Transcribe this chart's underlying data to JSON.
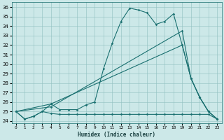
{
  "bg_color": "#cce8e8",
  "line_color": "#1a7070",
  "xlabel": "Humidex (Indice chaleur)",
  "xlim": [
    -0.5,
    23.5
  ],
  "ylim": [
    23.8,
    36.5
  ],
  "yticks": [
    24,
    25,
    26,
    27,
    28,
    29,
    30,
    31,
    32,
    33,
    34,
    35,
    36
  ],
  "xticks": [
    0,
    1,
    2,
    3,
    4,
    5,
    6,
    7,
    8,
    9,
    10,
    11,
    12,
    13,
    14,
    15,
    16,
    17,
    18,
    19,
    20,
    21,
    22,
    23
  ],
  "flat_x": [
    0,
    1,
    2,
    3,
    4,
    5,
    6,
    7,
    8,
    9,
    10,
    11,
    12,
    13,
    14,
    15,
    16,
    17,
    18,
    19,
    20,
    21,
    22,
    23
  ],
  "flat_y": [
    25.0,
    24.2,
    24.5,
    25.0,
    24.8,
    24.7,
    24.7,
    24.7,
    24.7,
    24.7,
    24.7,
    24.7,
    24.7,
    24.7,
    24.7,
    24.7,
    24.7,
    24.7,
    24.7,
    24.7,
    24.7,
    24.7,
    24.7,
    24.2
  ],
  "main_x": [
    0,
    1,
    2,
    3,
    4,
    5,
    6,
    7,
    8,
    9,
    10,
    11,
    12,
    13,
    14,
    15,
    16,
    17,
    18,
    19,
    20,
    21,
    22,
    23
  ],
  "main_y": [
    25.0,
    24.2,
    24.5,
    25.0,
    25.8,
    25.2,
    25.2,
    25.2,
    25.7,
    26.0,
    29.5,
    32.2,
    34.5,
    35.9,
    35.7,
    35.4,
    34.2,
    34.5,
    35.3,
    32.0,
    28.5,
    26.5,
    25.0,
    24.2
  ],
  "diag1_x": [
    0,
    4,
    19,
    20,
    21,
    22,
    23
  ],
  "diag1_y": [
    25.0,
    25.8,
    32.0,
    28.5,
    26.5,
    25.0,
    24.2
  ],
  "diag2_x": [
    0,
    4,
    19,
    20,
    21,
    22,
    23
  ],
  "diag2_y": [
    25.0,
    25.5,
    33.5,
    28.5,
    26.5,
    25.0,
    24.2
  ]
}
